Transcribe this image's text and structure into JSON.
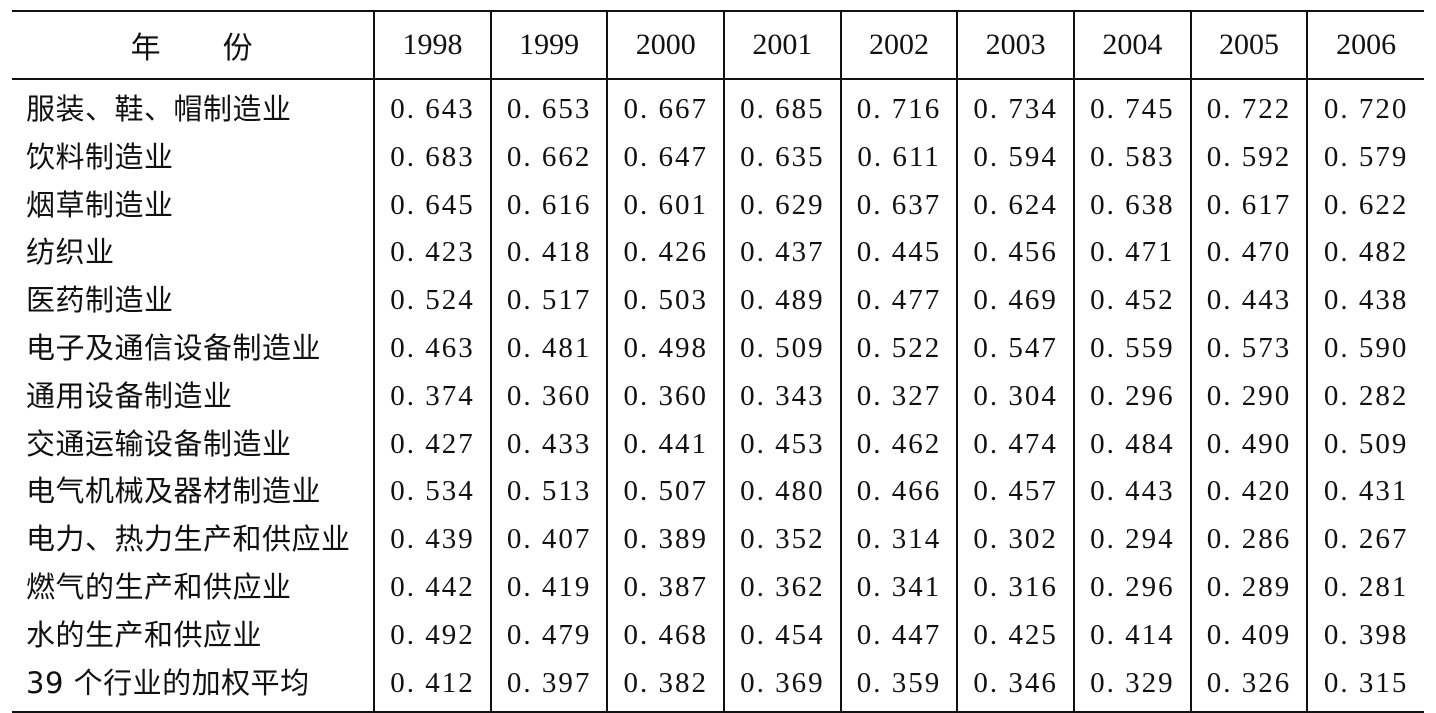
{
  "table": {
    "header": {
      "label_a": "年",
      "label_b": "份",
      "years": [
        "1998",
        "1999",
        "2000",
        "2001",
        "2002",
        "2003",
        "2004",
        "2005",
        "2006"
      ]
    },
    "rows": [
      {
        "name": "服装、鞋、帽制造业",
        "values": [
          "0. 643",
          "0. 653",
          "0. 667",
          "0. 685",
          "0. 716",
          "0. 734",
          "0. 745",
          "0. 722",
          "0. 720"
        ]
      },
      {
        "name": "饮料制造业",
        "values": [
          "0. 683",
          "0. 662",
          "0. 647",
          "0. 635",
          "0. 611",
          "0. 594",
          "0. 583",
          "0. 592",
          "0. 579"
        ]
      },
      {
        "name": "烟草制造业",
        "values": [
          "0. 645",
          "0. 616",
          "0. 601",
          "0. 629",
          "0. 637",
          "0. 624",
          "0. 638",
          "0. 617",
          "0. 622"
        ]
      },
      {
        "name": "纺织业",
        "values": [
          "0. 423",
          "0. 418",
          "0. 426",
          "0. 437",
          "0. 445",
          "0. 456",
          "0. 471",
          "0. 470",
          "0. 482"
        ]
      },
      {
        "name": "医药制造业",
        "values": [
          "0. 524",
          "0. 517",
          "0. 503",
          "0. 489",
          "0. 477",
          "0. 469",
          "0. 452",
          "0. 443",
          "0. 438"
        ]
      },
      {
        "name": "电子及通信设备制造业",
        "values": [
          "0. 463",
          "0. 481",
          "0. 498",
          "0. 509",
          "0. 522",
          "0. 547",
          "0. 559",
          "0. 573",
          "0. 590"
        ]
      },
      {
        "name": "通用设备制造业",
        "values": [
          "0. 374",
          "0. 360",
          "0. 360",
          "0. 343",
          "0. 327",
          "0. 304",
          "0. 296",
          "0. 290",
          "0. 282"
        ]
      },
      {
        "name": "交通运输设备制造业",
        "values": [
          "0. 427",
          "0. 433",
          "0. 441",
          "0. 453",
          "0. 462",
          "0. 474",
          "0. 484",
          "0. 490",
          "0. 509"
        ]
      },
      {
        "name": "电气机械及器材制造业",
        "values": [
          "0. 534",
          "0. 513",
          "0. 507",
          "0. 480",
          "0. 466",
          "0. 457",
          "0. 443",
          "0. 420",
          "0. 431"
        ]
      },
      {
        "name": "电力、热力生产和供应业",
        "values": [
          "0. 439",
          "0. 407",
          "0. 389",
          "0. 352",
          "0. 314",
          "0. 302",
          "0. 294",
          "0. 286",
          "0. 267"
        ]
      },
      {
        "name": "燃气的生产和供应业",
        "values": [
          "0. 442",
          "0. 419",
          "0. 387",
          "0. 362",
          "0. 341",
          "0. 316",
          "0. 296",
          "0. 289",
          "0. 281"
        ]
      },
      {
        "name": "水的生产和供应业",
        "values": [
          "0. 492",
          "0. 479",
          "0. 468",
          "0. 454",
          "0. 447",
          "0. 425",
          "0. 414",
          "0. 409",
          "0. 398"
        ]
      },
      {
        "name": "39 个行业的加权平均",
        "values": [
          "0. 412",
          "0. 397",
          "0. 382",
          "0. 369",
          "0. 359",
          "0. 346",
          "0. 329",
          "0. 326",
          "0. 315"
        ]
      }
    ]
  }
}
